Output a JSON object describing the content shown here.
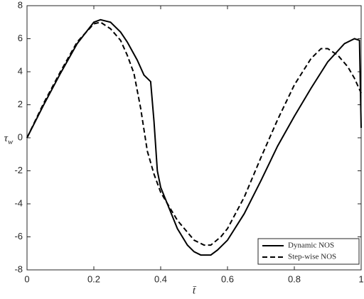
{
  "chart_data": {
    "type": "line",
    "xlabel": "t̄",
    "ylabel": {
      "base": "τ",
      "sub": "w"
    },
    "xlim": [
      0,
      1
    ],
    "ylim": [
      -8,
      8
    ],
    "xticks": [
      0,
      0.2,
      0.4,
      0.6,
      0.8,
      1
    ],
    "yticks": [
      -8,
      -6,
      -4,
      -2,
      0,
      2,
      4,
      6,
      8
    ],
    "grid": false,
    "legend": "lower right",
    "series": [
      {
        "name": "Dynamic NOS",
        "color": "#000000",
        "dash": "solid",
        "x": [
          0,
          0.05,
          0.1,
          0.15,
          0.2,
          0.22,
          0.25,
          0.28,
          0.3,
          0.33,
          0.35,
          0.37,
          0.38,
          0.39,
          0.4,
          0.42,
          0.45,
          0.48,
          0.5,
          0.52,
          0.55,
          0.57,
          0.6,
          0.65,
          0.7,
          0.75,
          0.8,
          0.85,
          0.9,
          0.95,
          0.98,
          0.995,
          1.0
        ],
        "values": [
          0,
          2.0,
          3.9,
          5.7,
          7.0,
          7.15,
          7.0,
          6.4,
          5.8,
          4.7,
          3.8,
          3.4,
          1.0,
          -2.0,
          -3.0,
          -4.0,
          -5.5,
          -6.5,
          -6.9,
          -7.1,
          -7.1,
          -6.8,
          -6.2,
          -4.6,
          -2.6,
          -0.5,
          1.3,
          3.0,
          4.6,
          5.7,
          6.0,
          5.9,
          0.6
        ]
      },
      {
        "name": "Step-wise NOS",
        "color": "#000000",
        "dash": "dashed",
        "x": [
          0,
          0.05,
          0.1,
          0.15,
          0.2,
          0.22,
          0.25,
          0.28,
          0.3,
          0.32,
          0.34,
          0.36,
          0.38,
          0.4,
          0.45,
          0.5,
          0.53,
          0.55,
          0.58,
          0.6,
          0.65,
          0.7,
          0.75,
          0.8,
          0.85,
          0.88,
          0.9,
          0.93,
          0.96,
          0.98,
          1.0
        ],
        "values": [
          0,
          2.1,
          4.0,
          5.8,
          6.9,
          7.0,
          6.6,
          5.9,
          5.0,
          3.9,
          1.8,
          -0.8,
          -2.2,
          -3.3,
          -5.0,
          -6.2,
          -6.5,
          -6.5,
          -6.0,
          -5.5,
          -3.6,
          -1.2,
          1.1,
          3.2,
          4.8,
          5.4,
          5.4,
          5.0,
          4.3,
          3.6,
          2.7
        ]
      }
    ]
  }
}
